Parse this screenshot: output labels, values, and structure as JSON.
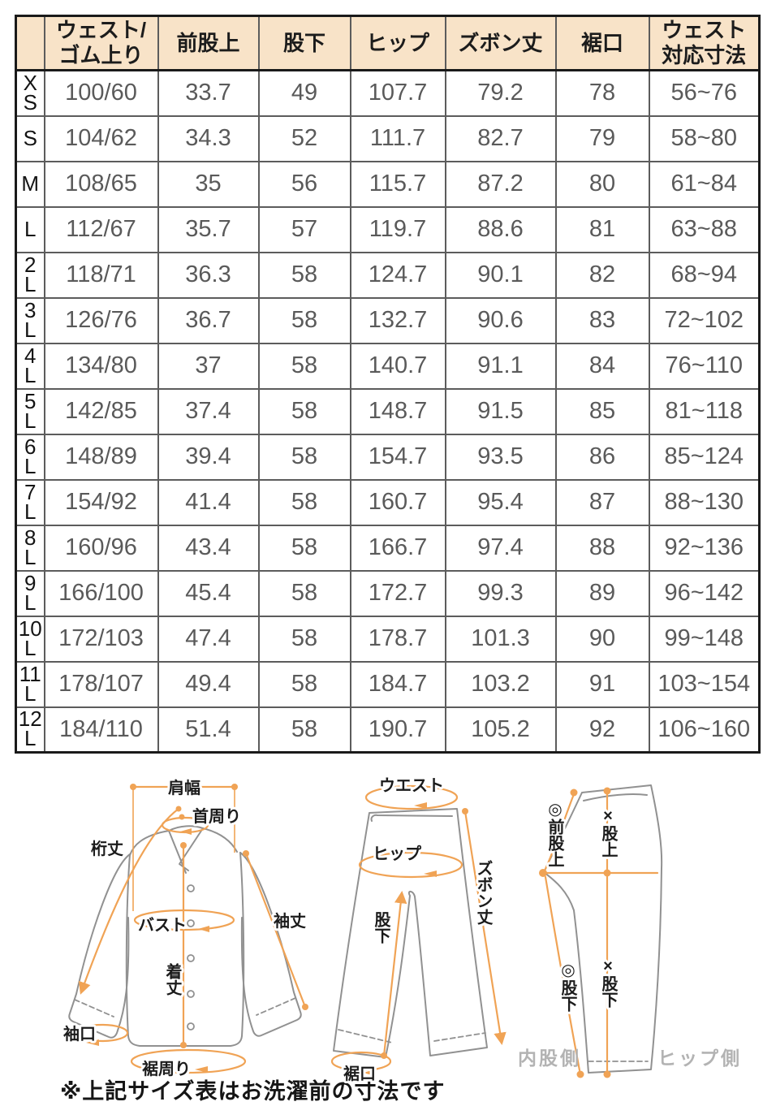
{
  "table": {
    "columns": [
      "",
      "ウェスト/\nゴム上り",
      "前股上",
      "股下",
      "ヒップ",
      "ズボン丈",
      "裾口",
      "ウェスト\n対応寸法"
    ],
    "rows": [
      {
        "size": "X\nS",
        "values": [
          "100/60",
          "33.7",
          "49",
          "107.7",
          "79.2",
          "78",
          "56~76"
        ]
      },
      {
        "size": "S",
        "values": [
          "104/62",
          "34.3",
          "52",
          "111.7",
          "82.7",
          "79",
          "58~80"
        ]
      },
      {
        "size": "M",
        "values": [
          "108/65",
          "35",
          "56",
          "115.7",
          "87.2",
          "80",
          "61~84"
        ]
      },
      {
        "size": "L",
        "values": [
          "112/67",
          "35.7",
          "57",
          "119.7",
          "88.6",
          "81",
          "63~88"
        ]
      },
      {
        "size": "2\nL",
        "values": [
          "118/71",
          "36.3",
          "58",
          "124.7",
          "90.1",
          "82",
          "68~94"
        ]
      },
      {
        "size": "3\nL",
        "values": [
          "126/76",
          "36.7",
          "58",
          "132.7",
          "90.6",
          "83",
          "72~102"
        ]
      },
      {
        "size": "4\nL",
        "values": [
          "134/80",
          "37",
          "58",
          "140.7",
          "91.1",
          "84",
          "76~110"
        ]
      },
      {
        "size": "5\nL",
        "values": [
          "142/85",
          "37.4",
          "58",
          "148.7",
          "91.5",
          "85",
          "81~118"
        ]
      },
      {
        "size": "6\nL",
        "values": [
          "148/89",
          "39.4",
          "58",
          "154.7",
          "93.5",
          "86",
          "85~124"
        ]
      },
      {
        "size": "7\nL",
        "values": [
          "154/92",
          "41.4",
          "58",
          "160.7",
          "95.4",
          "87",
          "88~130"
        ]
      },
      {
        "size": "8\nL",
        "values": [
          "160/96",
          "43.4",
          "58",
          "166.7",
          "97.4",
          "88",
          "92~136"
        ]
      },
      {
        "size": "9\nL",
        "values": [
          "166/100",
          "45.4",
          "58",
          "172.7",
          "99.3",
          "89",
          "96~142"
        ]
      },
      {
        "size": "10\nL",
        "values": [
          "172/103",
          "47.4",
          "58",
          "178.7",
          "101.3",
          "90",
          "99~148"
        ]
      },
      {
        "size": "11\nL",
        "values": [
          "178/107",
          "49.4",
          "58",
          "184.7",
          "103.2",
          "91",
          "103~154"
        ]
      },
      {
        "size": "12\nL",
        "values": [
          "184/110",
          "51.4",
          "58",
          "190.7",
          "105.2",
          "92",
          "106~160"
        ]
      }
    ]
  },
  "diagrams": {
    "shirt": {
      "shoulder": "肩幅",
      "neck": "首周り",
      "yuki": "桁丈",
      "bust": "バスト",
      "sleeve": "袖丈",
      "length": "着丈",
      "cuff": "袖口",
      "hem": "裾周り"
    },
    "pants_front": {
      "waist": "ウエスト",
      "hip": "ヒップ",
      "length": "ズボン丈",
      "inseam": "股下",
      "hem": "裾口"
    },
    "pants_flat": {
      "front_rise": "◎前股上",
      "rise": "×股上",
      "inseam_a": "◎股下",
      "inseam_b": "×股下",
      "inner_side": "内股側",
      "hip_side": "ヒップ側"
    }
  },
  "note": "※上記サイズ表はお洗濯前の寸法です",
  "colors": {
    "header_bg": "#F8E3C8",
    "accent_orange": "#F0A355",
    "outline_gray": "#919191",
    "grid_border": "#5C5C5C",
    "outer_border": "#1A1A1A",
    "value_text": "#5A5A5A",
    "muted_label": "#B3B3B3"
  }
}
